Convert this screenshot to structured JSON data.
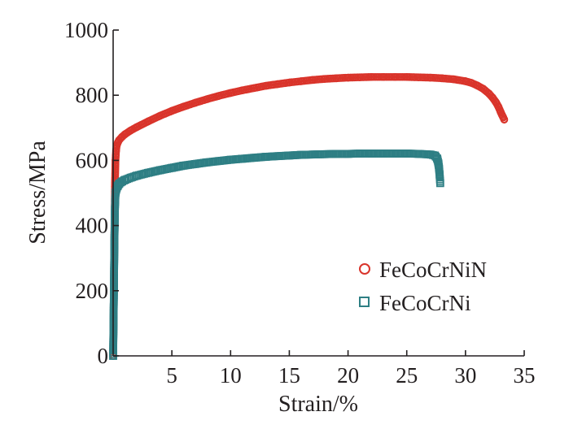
{
  "chart_data": {
    "type": "scatter",
    "xlabel": "Strain/%",
    "ylabel": "Stress/MPa",
    "xlim": [
      0,
      35
    ],
    "ylim": [
      0,
      1000
    ],
    "xticks": [
      5,
      10,
      15,
      20,
      25,
      30,
      35
    ],
    "yticks": [
      0,
      200,
      400,
      600,
      800,
      1000
    ],
    "grid": false,
    "legend_position": "lower-right",
    "series": [
      {
        "name": "FeCoCrNiN",
        "color": "#d9342b",
        "marker": "circle",
        "x": [
          0,
          0.05,
          0.1,
          0.15,
          0.2,
          0.25,
          0.3,
          0.4,
          0.5,
          0.75,
          1,
          1.5,
          2,
          3,
          4,
          5,
          6,
          7,
          8,
          9,
          10,
          11,
          12,
          13,
          14,
          15,
          16,
          17,
          18,
          19,
          20,
          21,
          22,
          23,
          24,
          25,
          26,
          27,
          28,
          29,
          30,
          30.5,
          31,
          31.5,
          32,
          32.3,
          32.6,
          32.8,
          33,
          33.1,
          33.2,
          33.3
        ],
        "y": [
          0,
          150,
          350,
          520,
          600,
          630,
          645,
          655,
          662,
          672,
          680,
          692,
          702,
          720,
          737,
          752,
          765,
          777,
          788,
          798,
          807,
          815,
          822,
          829,
          834,
          839,
          843,
          847,
          850,
          852,
          854,
          855,
          856,
          856,
          856,
          856,
          855,
          854,
          852,
          849,
          843,
          838,
          830,
          820,
          805,
          793,
          778,
          765,
          748,
          740,
          733,
          725
        ]
      },
      {
        "name": "FeCoCrNi",
        "color": "#2e7f84",
        "marker": "square",
        "x": [
          0,
          0.05,
          0.1,
          0.15,
          0.2,
          0.3,
          0.4,
          0.5,
          0.75,
          1,
          1.5,
          2,
          3,
          4,
          5,
          6,
          7,
          8,
          9,
          10,
          11,
          12,
          13,
          14,
          15,
          16,
          17,
          18,
          19,
          20,
          21,
          22,
          23,
          24,
          25,
          26,
          27,
          27.4,
          27.6,
          27.7,
          27.75,
          27.8,
          27.85
        ],
        "y": [
          0,
          150,
          330,
          450,
          500,
          515,
          522,
          528,
          535,
          540,
          547,
          553,
          562,
          570,
          577,
          584,
          589,
          594,
          598,
          602,
          605,
          608,
          611,
          613,
          615,
          617,
          618,
          619,
          620,
          620,
          621,
          621,
          621,
          621,
          621,
          620,
          618,
          615,
          605,
          590,
          575,
          555,
          530
        ]
      }
    ]
  }
}
